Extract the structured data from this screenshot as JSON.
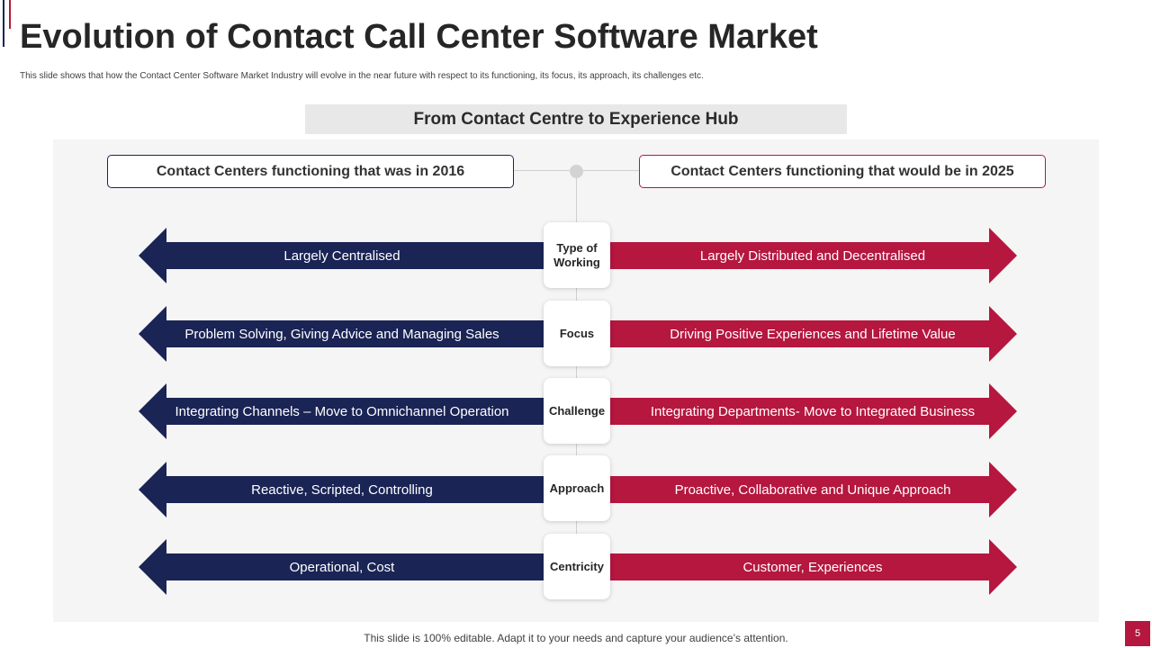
{
  "slide": {
    "title": "Evolution of Contact Call Center Software Market",
    "subtitle": "This slide shows that how the Contact Center Software Market Industry will evolve in the near future with respect to its functioning, its focus, its approach, its challenges etc.",
    "banner": "From Contact Centre to Experience Hub",
    "footer": "This slide is 100% editable. Adapt it to your needs and capture your audience’s attention.",
    "page_number": "5"
  },
  "headers": {
    "left": "Contact Centers functioning that was in 2016",
    "right": "Contact Centers functioning that would be in 2025"
  },
  "rows": [
    {
      "label": "Type of Working",
      "left": "Largely Centralised",
      "right": "Largely Distributed and Decentralised"
    },
    {
      "label": "Focus",
      "left": "Problem Solving, Giving Advice and Managing Sales",
      "right": "Driving Positive Experiences and Lifetime Value"
    },
    {
      "label": "Challenge",
      "left": "Integrating Channels – Move to Omnichannel Operation",
      "right": "Integrating Departments- Move to Integrated Business"
    },
    {
      "label": "Approach",
      "left": "Reactive, Scripted, Controlling",
      "right": "Proactive, Collaborative and Unique Approach"
    },
    {
      "label": "Centricity",
      "left": "Operational, Cost",
      "right": "Customer, Experiences"
    }
  ],
  "colors": {
    "navy": "#1a2455",
    "crimson": "#b5173f",
    "panel": "#f5f5f5",
    "banner": "#e8e8e8"
  }
}
